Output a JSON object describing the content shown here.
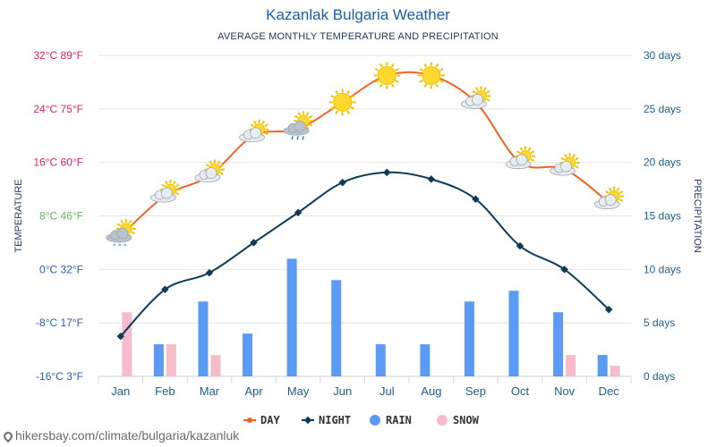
{
  "page": {
    "title": "Kazanlak Bulgaria Weather",
    "subtitle": "AVERAGE MONTHLY TEMPERATURE AND PRECIPITATION",
    "footer": "hikersbay.com/climate/bulgaria/kazanluk"
  },
  "chart_data": {
    "type": "line",
    "categories": [
      "Jan",
      "Feb",
      "Mar",
      "Apr",
      "May",
      "Jun",
      "Jul",
      "Aug",
      "Sep",
      "Oct",
      "Nov",
      "Dec"
    ],
    "ylabel_left": "TEMPERATURE",
    "ylabel_right": "PRECIPITATION",
    "y_left": {
      "range_c": [
        -16,
        32
      ],
      "ticks": [
        {
          "c": 32,
          "label": "32°C 89°F",
          "color": "#e0245e"
        },
        {
          "c": 24,
          "label": "24°C 75°F",
          "color": "#e0245e"
        },
        {
          "c": 16,
          "label": "16°C 60°F",
          "color": "#e0245e"
        },
        {
          "c": 8,
          "label": "8°C 46°F",
          "color": "#5cb85c"
        },
        {
          "c": 0,
          "label": "0°C 32°F",
          "color": "#2a5db0"
        },
        {
          "c": -8,
          "label": "-8°C 17°F",
          "color": "#2a5db0"
        },
        {
          "c": -16,
          "label": "-16°C 3°F",
          "color": "#2a5db0"
        }
      ]
    },
    "y_right": {
      "range_days": [
        0,
        30
      ],
      "color": "#1f5e8c",
      "ticks": [
        {
          "v": 30,
          "label": "30 days"
        },
        {
          "v": 25,
          "label": "25 days"
        },
        {
          "v": 20,
          "label": "20 days"
        },
        {
          "v": 15,
          "label": "15 days"
        },
        {
          "v": 10,
          "label": "10 days"
        },
        {
          "v": 5,
          "label": "5 days"
        },
        {
          "v": 0,
          "label": "0 days"
        }
      ]
    },
    "series": [
      {
        "name": "DAY",
        "kind": "line",
        "axis": "left",
        "color": "#f26322",
        "values": [
          5,
          11,
          14,
          20,
          21,
          25,
          29,
          29,
          25,
          16,
          15,
          10
        ],
        "icons": [
          "snow-cloud",
          "sun-cloud",
          "sun-cloud",
          "sun-cloud",
          "rain-cloud",
          "sun",
          "sun",
          "sun",
          "sun-cloud",
          "sun-cloud",
          "sun-cloud",
          "sun-cloud"
        ]
      },
      {
        "name": "NIGHT",
        "kind": "line",
        "axis": "left",
        "color": "#0d3b57",
        "values": [
          -10,
          -3,
          -0.5,
          4,
          8.5,
          13,
          14.5,
          13.5,
          10.5,
          3.5,
          0,
          -6
        ]
      },
      {
        "name": "RAIN",
        "kind": "bar",
        "axis": "right",
        "color": "#5b9bf5",
        "values": [
          0,
          3,
          7,
          4,
          11,
          9,
          3,
          3,
          7,
          8,
          6,
          2
        ]
      },
      {
        "name": "SNOW",
        "kind": "bar",
        "axis": "right",
        "color": "#f7bccb",
        "values": [
          6,
          3,
          2,
          0,
          0,
          0,
          0,
          0,
          0,
          0,
          2,
          1
        ]
      }
    ],
    "legend_placement": "bottom-center",
    "grid": true
  }
}
